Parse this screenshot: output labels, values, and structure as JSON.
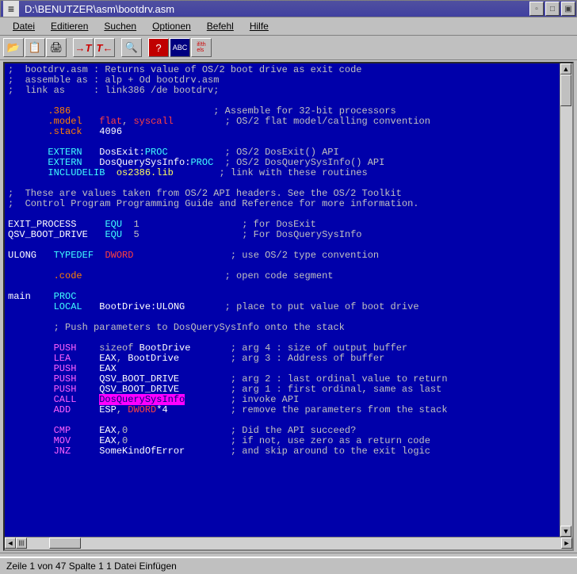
{
  "window": {
    "title": "D:\\BENUTZER\\asm\\bootdrv.asm"
  },
  "menu": {
    "items": [
      "Datei",
      "Editieren",
      "Suchen",
      "Optionen",
      "Befehl",
      "Hilfe"
    ]
  },
  "toolbar": {
    "icons": [
      "📂",
      "📋",
      "🖨",
      "T→",
      "T←",
      "🔍",
      "❓",
      "⬛",
      "if/th/els"
    ]
  },
  "status": {
    "text": "Zeile  1 von 47  Spalte    1   1 Datei   Einfügen"
  },
  "code": {
    "lines": [
      {
        "segs": [
          {
            "t": ";  bootdrv.asm : Returns value of OS/2 boot drive as exit code",
            "c": ""
          }
        ]
      },
      {
        "segs": [
          {
            "t": ";  assemble as : alp + Od bootdrv.asm",
            "c": ""
          }
        ]
      },
      {
        "segs": [
          {
            "t": ";  link as     : link386 /de bootdrv;",
            "c": ""
          }
        ]
      },
      {
        "segs": [
          {
            "t": "",
            "c": ""
          }
        ]
      },
      {
        "segs": [
          {
            "t": "       ",
            "c": ""
          },
          {
            "t": ".386",
            "c": "kw-dir"
          },
          {
            "t": "                         ; Assemble for 32-bit processors",
            "c": ""
          }
        ]
      },
      {
        "segs": [
          {
            "t": "       ",
            "c": ""
          },
          {
            "t": ".model",
            "c": "kw-dir"
          },
          {
            "t": "   ",
            "c": ""
          },
          {
            "t": "flat",
            "c": "kw-red"
          },
          {
            "t": ", ",
            "c": ""
          },
          {
            "t": "syscall",
            "c": "kw-red"
          },
          {
            "t": "         ; OS/2 flat model/calling convention",
            "c": ""
          }
        ]
      },
      {
        "segs": [
          {
            "t": "       ",
            "c": ""
          },
          {
            "t": ".stack",
            "c": "kw-dir"
          },
          {
            "t": "   ",
            "c": ""
          },
          {
            "t": "4096",
            "c": "kw-wht"
          }
        ]
      },
      {
        "segs": [
          {
            "t": "",
            "c": ""
          }
        ]
      },
      {
        "segs": [
          {
            "t": "       ",
            "c": ""
          },
          {
            "t": "EXTERN",
            "c": "kw-cyan"
          },
          {
            "t": "   DosExit:",
            "c": "kw-wht"
          },
          {
            "t": "PROC",
            "c": "kw-cyan"
          },
          {
            "t": "          ; OS/2 DosExit() API",
            "c": ""
          }
        ]
      },
      {
        "segs": [
          {
            "t": "       ",
            "c": ""
          },
          {
            "t": "EXTERN",
            "c": "kw-cyan"
          },
          {
            "t": "   DosQuerySysInfo:",
            "c": "kw-wht"
          },
          {
            "t": "PROC",
            "c": "kw-cyan"
          },
          {
            "t": "  ; OS/2 DosQuerySysInfo() API",
            "c": ""
          }
        ]
      },
      {
        "segs": [
          {
            "t": "       ",
            "c": ""
          },
          {
            "t": "INCLUDELIB",
            "c": "kw-cyan"
          },
          {
            "t": "  ",
            "c": ""
          },
          {
            "t": "os2386.lib",
            "c": "kw-yel"
          },
          {
            "t": "        ; link with these routines",
            "c": ""
          }
        ]
      },
      {
        "segs": [
          {
            "t": "",
            "c": ""
          }
        ]
      },
      {
        "segs": [
          {
            "t": ";  These are values taken from OS/2 API headers. See the OS/2 Toolkit",
            "c": ""
          }
        ]
      },
      {
        "segs": [
          {
            "t": ";  Control Program Programming Guide and Reference for more information.",
            "c": ""
          }
        ]
      },
      {
        "segs": [
          {
            "t": "",
            "c": ""
          }
        ]
      },
      {
        "segs": [
          {
            "t": "EXIT_PROCESS",
            "c": "kw-wht"
          },
          {
            "t": "     ",
            "c": ""
          },
          {
            "t": "EQU",
            "c": "kw-cyan"
          },
          {
            "t": "  1                  ; for DosExit",
            "c": ""
          }
        ]
      },
      {
        "segs": [
          {
            "t": "QSV_BOOT_DRIVE",
            "c": "kw-wht"
          },
          {
            "t": "   ",
            "c": ""
          },
          {
            "t": "EQU",
            "c": "kw-cyan"
          },
          {
            "t": "  5                  ; For DosQuerySysInfo",
            "c": ""
          }
        ]
      },
      {
        "segs": [
          {
            "t": "",
            "c": ""
          }
        ]
      },
      {
        "segs": [
          {
            "t": "ULONG",
            "c": "kw-wht"
          },
          {
            "t": "   ",
            "c": ""
          },
          {
            "t": "TYPEDEF",
            "c": "kw-cyan"
          },
          {
            "t": "  ",
            "c": ""
          },
          {
            "t": "DWORD",
            "c": "kw-red"
          },
          {
            "t": "                 ; use OS/2 type convention",
            "c": ""
          }
        ]
      },
      {
        "segs": [
          {
            "t": "",
            "c": ""
          }
        ]
      },
      {
        "segs": [
          {
            "t": "        ",
            "c": ""
          },
          {
            "t": ".code",
            "c": "kw-dir"
          },
          {
            "t": "                         ; open code segment",
            "c": ""
          }
        ]
      },
      {
        "segs": [
          {
            "t": "",
            "c": ""
          }
        ]
      },
      {
        "segs": [
          {
            "t": "main",
            "c": "kw-wht"
          },
          {
            "t": "    ",
            "c": ""
          },
          {
            "t": "PROC",
            "c": "kw-cyan"
          }
        ]
      },
      {
        "segs": [
          {
            "t": "        ",
            "c": ""
          },
          {
            "t": "LOCAL",
            "c": "kw-cyan"
          },
          {
            "t": "   BootDrive:",
            "c": "kw-wht"
          },
          {
            "t": "ULONG",
            "c": "kw-wht"
          },
          {
            "t": "       ; place to put value of boot drive",
            "c": ""
          }
        ]
      },
      {
        "segs": [
          {
            "t": "",
            "c": ""
          }
        ]
      },
      {
        "segs": [
          {
            "t": "        ; Push parameters to DosQuerySysInfo onto the stack",
            "c": ""
          }
        ]
      },
      {
        "segs": [
          {
            "t": "",
            "c": ""
          }
        ]
      },
      {
        "segs": [
          {
            "t": "        ",
            "c": ""
          },
          {
            "t": "PUSH",
            "c": "kw-mag"
          },
          {
            "t": "    sizeof ",
            "c": ""
          },
          {
            "t": "BootDrive",
            "c": "kw-wht"
          },
          {
            "t": "       ; arg 4 : size of output buffer",
            "c": ""
          }
        ]
      },
      {
        "segs": [
          {
            "t": "        ",
            "c": ""
          },
          {
            "t": "LEA",
            "c": "kw-mag"
          },
          {
            "t": "     ",
            "c": ""
          },
          {
            "t": "EAX",
            "c": "kw-wht"
          },
          {
            "t": ", ",
            "c": ""
          },
          {
            "t": "BootDrive",
            "c": "kw-wht"
          },
          {
            "t": "         ; arg 3 : Address of buffer",
            "c": ""
          }
        ]
      },
      {
        "segs": [
          {
            "t": "        ",
            "c": ""
          },
          {
            "t": "PUSH",
            "c": "kw-mag"
          },
          {
            "t": "    ",
            "c": ""
          },
          {
            "t": "EAX",
            "c": "kw-wht"
          }
        ]
      },
      {
        "segs": [
          {
            "t": "        ",
            "c": ""
          },
          {
            "t": "PUSH",
            "c": "kw-mag"
          },
          {
            "t": "    ",
            "c": ""
          },
          {
            "t": "QSV_BOOT_DRIVE",
            "c": "kw-wht"
          },
          {
            "t": "         ; arg 2 : last ordinal value to return",
            "c": ""
          }
        ]
      },
      {
        "segs": [
          {
            "t": "        ",
            "c": ""
          },
          {
            "t": "PUSH",
            "c": "kw-mag"
          },
          {
            "t": "    ",
            "c": ""
          },
          {
            "t": "QSV_BOOT_DRIVE",
            "c": "kw-wht"
          },
          {
            "t": "         ; arg 1 : first ordinal, same as last",
            "c": ""
          }
        ]
      },
      {
        "segs": [
          {
            "t": "        ",
            "c": ""
          },
          {
            "t": "CALL",
            "c": "kw-mag"
          },
          {
            "t": "    ",
            "c": ""
          },
          {
            "t": "DosQuerySysInfo",
            "c": "hl"
          },
          {
            "t": "        ; invoke API",
            "c": ""
          }
        ]
      },
      {
        "segs": [
          {
            "t": "        ",
            "c": ""
          },
          {
            "t": "ADD",
            "c": "kw-mag"
          },
          {
            "t": "     ",
            "c": ""
          },
          {
            "t": "ESP",
            "c": "kw-wht"
          },
          {
            "t": ", ",
            "c": ""
          },
          {
            "t": "DWORD",
            "c": "kw-red"
          },
          {
            "t": "*4",
            "c": "kw-wht"
          },
          {
            "t": "           ; remove the parameters from the stack",
            "c": ""
          }
        ]
      },
      {
        "segs": [
          {
            "t": "",
            "c": ""
          }
        ]
      },
      {
        "segs": [
          {
            "t": "        ",
            "c": ""
          },
          {
            "t": "CMP",
            "c": "kw-mag"
          },
          {
            "t": "     ",
            "c": ""
          },
          {
            "t": "EAX",
            "c": "kw-wht"
          },
          {
            "t": ",0                  ; Did the API succeed?",
            "c": ""
          }
        ]
      },
      {
        "segs": [
          {
            "t": "        ",
            "c": ""
          },
          {
            "t": "MOV",
            "c": "kw-mag"
          },
          {
            "t": "     ",
            "c": ""
          },
          {
            "t": "EAX",
            "c": "kw-wht"
          },
          {
            "t": ",0                  ; if not, use zero as a return code",
            "c": ""
          }
        ]
      },
      {
        "segs": [
          {
            "t": "        ",
            "c": ""
          },
          {
            "t": "JNZ",
            "c": "kw-mag"
          },
          {
            "t": "     ",
            "c": ""
          },
          {
            "t": "SomeKindOfError",
            "c": "kw-wht"
          },
          {
            "t": "        ; and skip around to the exit logic",
            "c": ""
          }
        ]
      }
    ]
  },
  "colors": {
    "background": "#0000aa",
    "default": "#c0c0c0",
    "directive": "#ff8000",
    "keyword_red": "#ff4040",
    "keyword_cyan": "#40ffff",
    "keyword_magenta": "#ff60ff",
    "keyword_yellow": "#ffff60",
    "white": "#ffffff",
    "highlight_bg": "#ff00ff",
    "highlight_fg": "#000080",
    "ui_bg": "#c0c0c0",
    "titlebar_bg": "#4040a0",
    "titlebar_fg": "#ffffff"
  }
}
